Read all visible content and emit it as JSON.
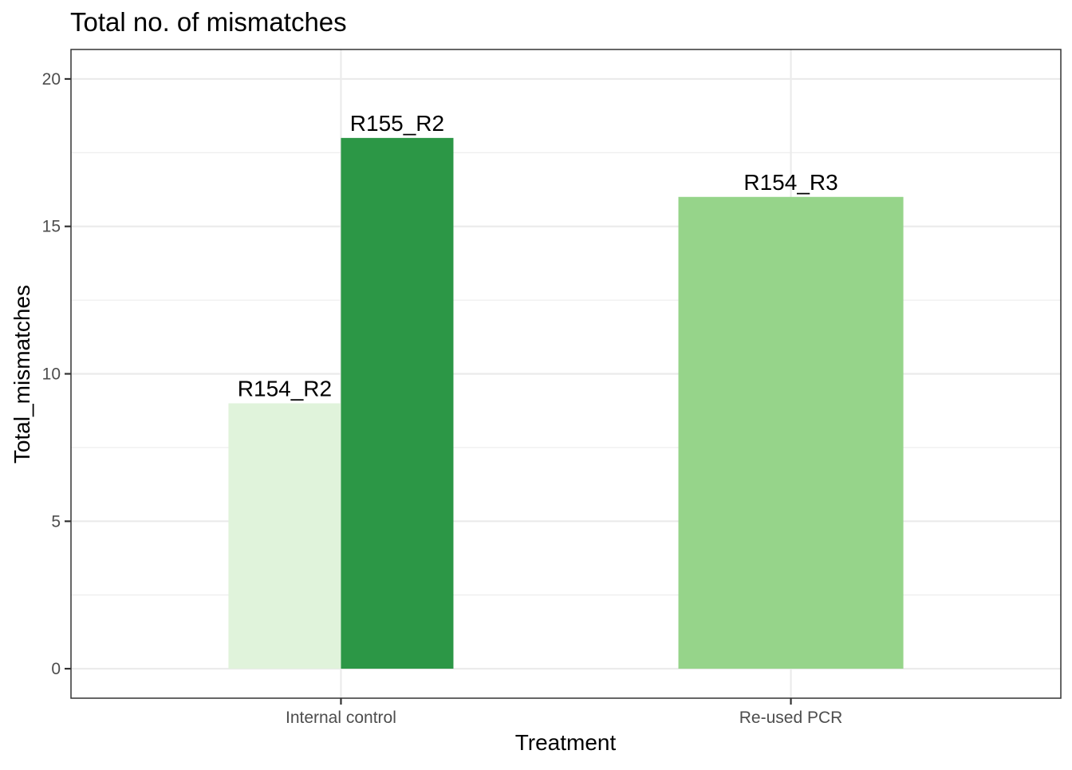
{
  "chart_data": {
    "type": "bar",
    "title": "Total no. of mismatches",
    "xlabel": "Treatment",
    "ylabel": "Total_mismatches",
    "categories": [
      "Internal control",
      "Re-used PCR"
    ],
    "ylim": [
      -1,
      21
    ],
    "yticks": [
      0,
      5,
      10,
      15,
      20
    ],
    "grid": true,
    "legend": "none",
    "bars": [
      {
        "category": "Internal control",
        "group": "R154_R2",
        "value": 9,
        "label": "R154_R2",
        "color": "#e0f3db"
      },
      {
        "category": "Internal control",
        "group": "R155_R2",
        "value": 18,
        "label": "R155_R2",
        "color": "#2c9746"
      },
      {
        "category": "Re-used PCR",
        "group": "R154_R3",
        "value": 16,
        "label": "R154_R3",
        "color": "#96d48a"
      }
    ]
  }
}
